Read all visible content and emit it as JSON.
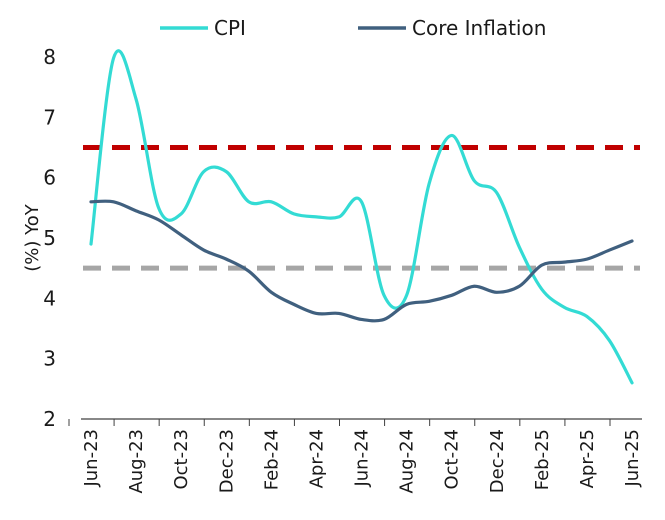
{
  "chart_data": {
    "type": "line",
    "title": "",
    "ylabel": "(%)  YoY",
    "xlabel": "",
    "ylim": [
      2,
      8
    ],
    "yticks": [
      2,
      3,
      4,
      5,
      6,
      7,
      8
    ],
    "legend_position": "top",
    "x_tick_labels": [
      "Jun-23",
      "Aug-23",
      "Oct-23",
      "Dec-23",
      "Feb-24",
      "Apr-24",
      "Jun-24",
      "Aug-24",
      "Oct-24",
      "Dec-24",
      "Feb-25",
      "Apr-25",
      "Jun-25"
    ],
    "x": [
      "Jun-23",
      "Jul-23",
      "Aug-23",
      "Sep-23",
      "Oct-23",
      "Nov-23",
      "Dec-23",
      "Jan-24",
      "Feb-24",
      "Mar-24",
      "Apr-24",
      "May-24",
      "Jun-24",
      "Jul-24",
      "Aug-24",
      "Sep-24",
      "Oct-24",
      "Nov-24",
      "Dec-24",
      "Jan-25",
      "Feb-25",
      "Mar-25",
      "Apr-25",
      "May-25",
      "Jun-25"
    ],
    "series": [
      {
        "name": "CPI",
        "color": "#33dbd4",
        "values": [
          4.9,
          7.98,
          7.3,
          5.5,
          5.4,
          6.1,
          6.1,
          5.6,
          5.6,
          5.4,
          5.35,
          5.35,
          5.6,
          4.05,
          4.05,
          5.9,
          6.7,
          5.95,
          5.75,
          4.85,
          4.15,
          3.85,
          3.7,
          3.3,
          2.6
        ]
      },
      {
        "name": "Core Inflation",
        "color": "#40607f",
        "values": [
          5.6,
          5.6,
          5.45,
          5.3,
          5.05,
          4.8,
          4.65,
          4.45,
          4.1,
          3.9,
          3.75,
          3.75,
          3.65,
          3.65,
          3.9,
          3.95,
          4.05,
          4.2,
          4.1,
          4.2,
          4.55,
          4.6,
          4.65,
          4.8,
          4.95
        ]
      }
    ],
    "reference_lines": [
      {
        "value": 6.5,
        "color": "#c00000",
        "style": "dashed"
      },
      {
        "value": 4.5,
        "color": "#a6a6a6",
        "style": "dashed"
      }
    ]
  }
}
